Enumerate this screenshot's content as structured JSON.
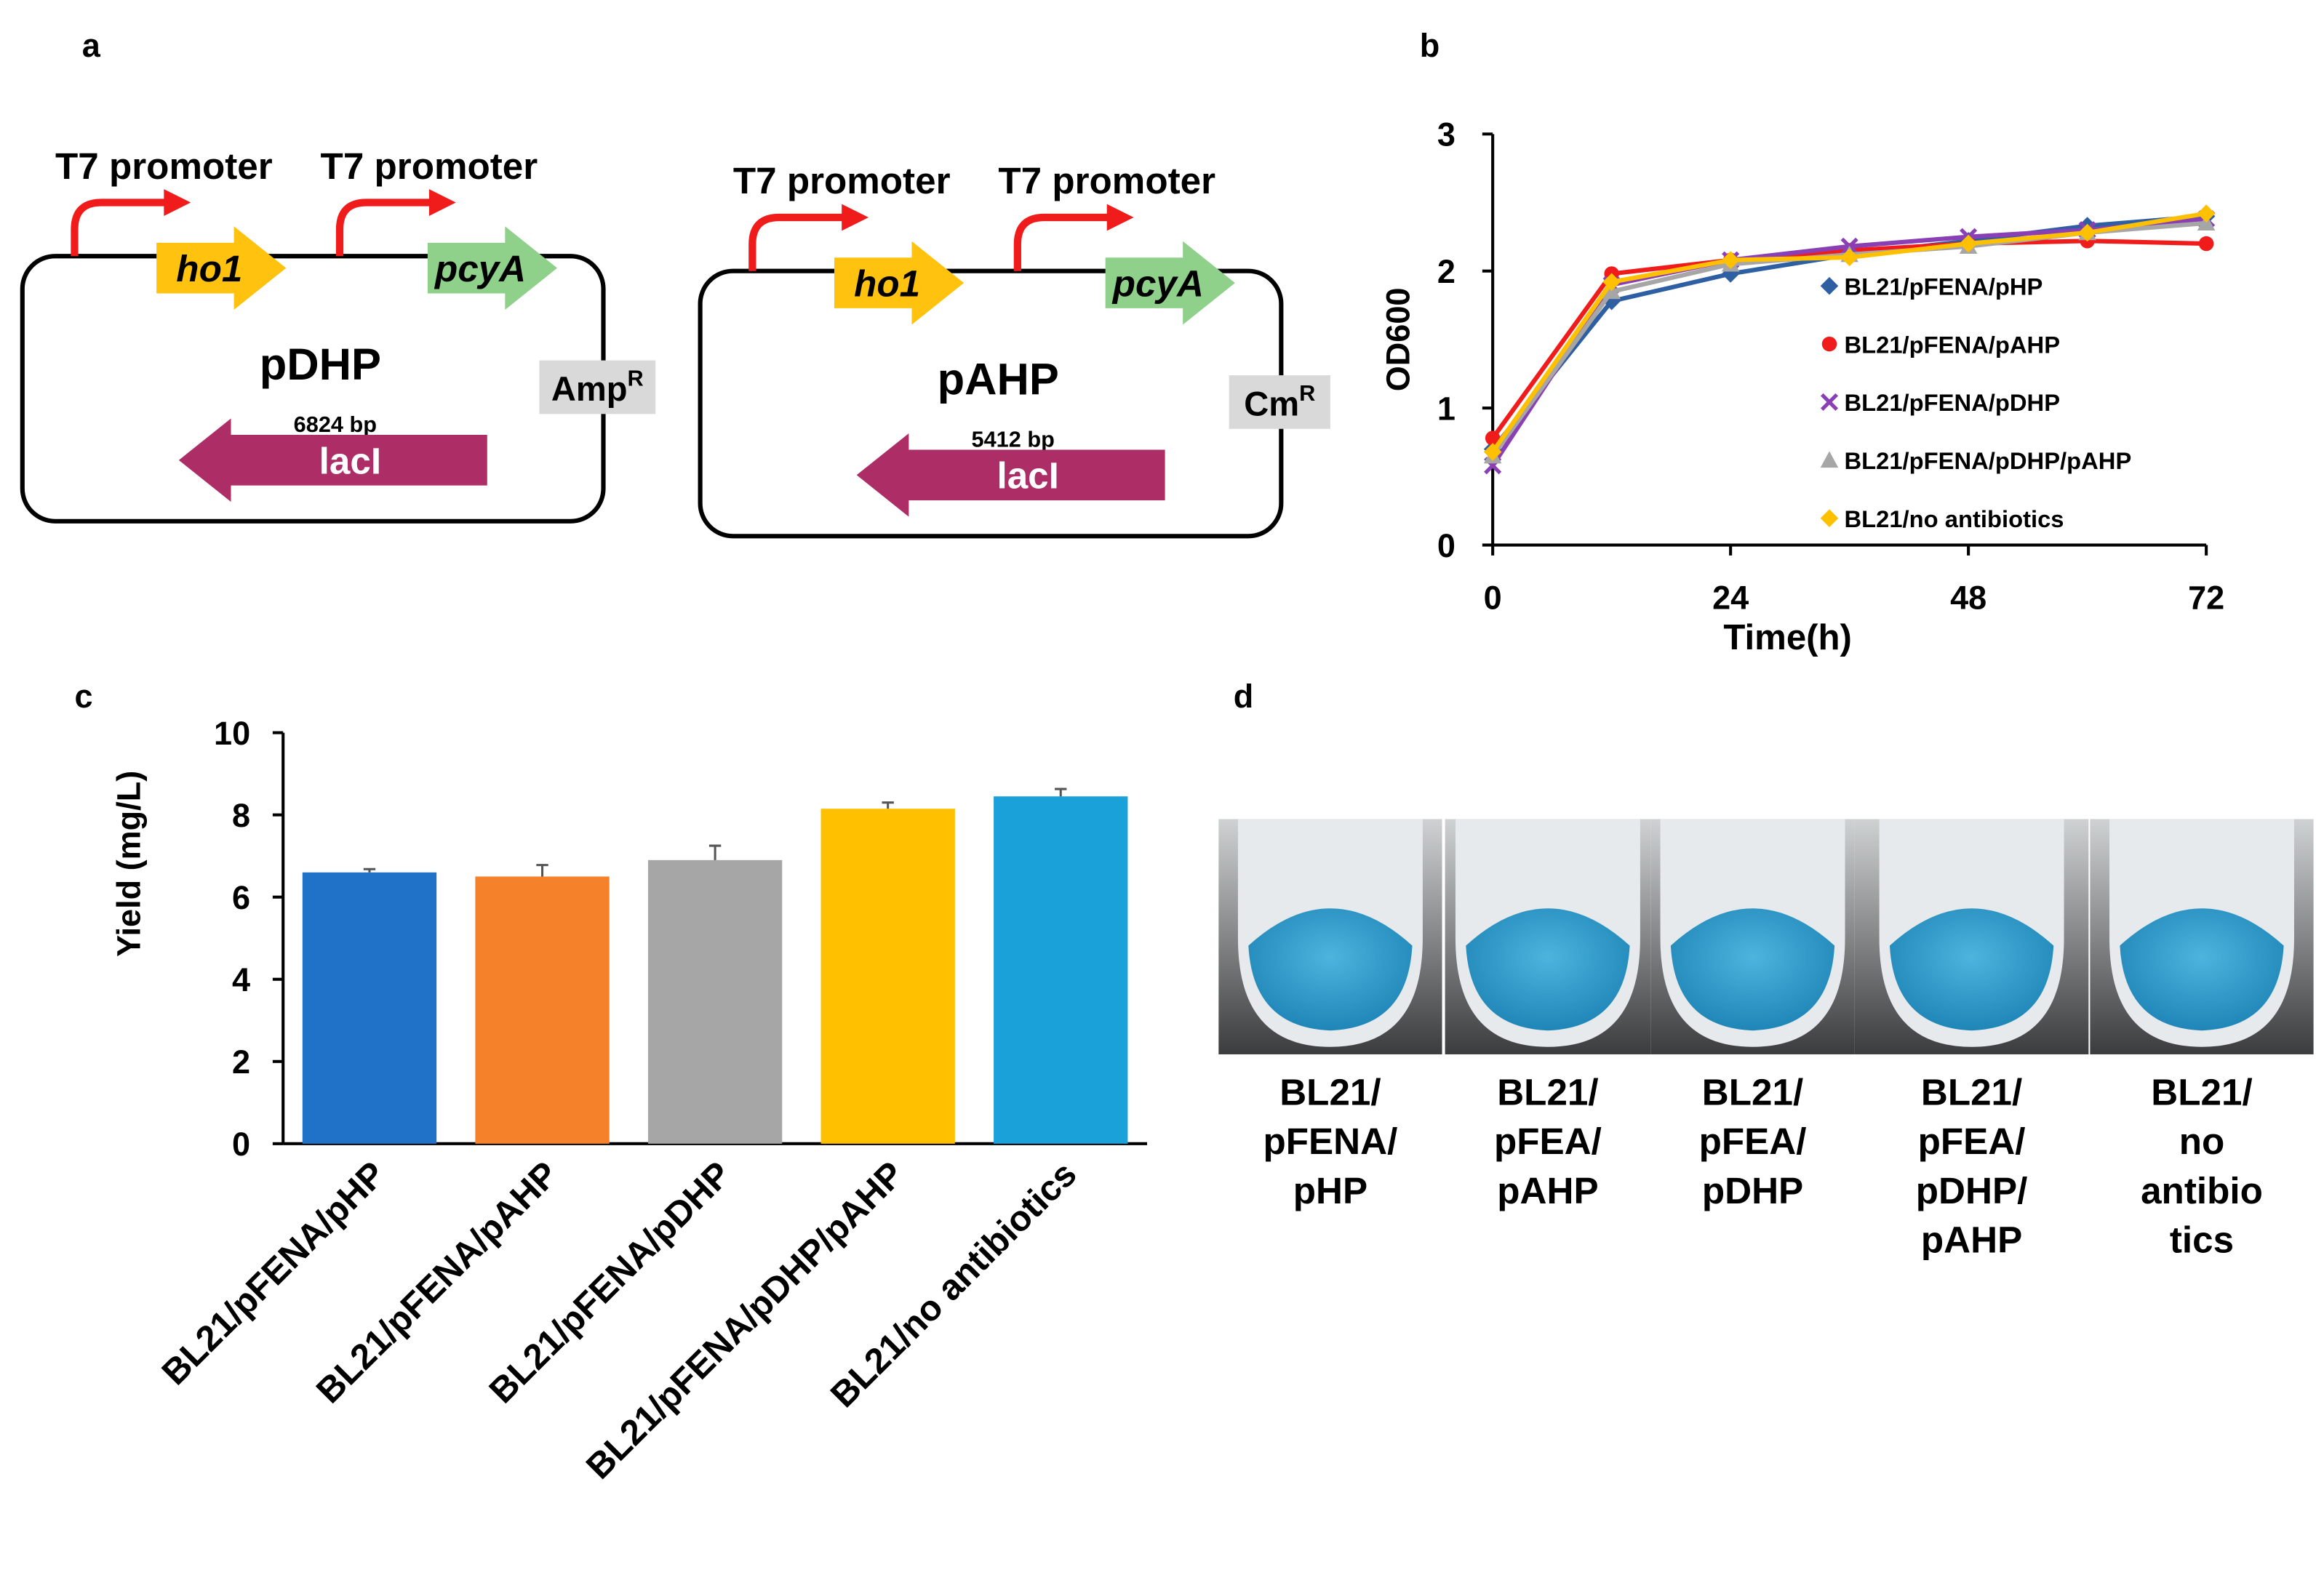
{
  "panels": [
    "a",
    "b",
    "c",
    "d"
  ],
  "plasmids": [
    {
      "name": "pDHP",
      "size": "6824 bp",
      "promoters": [
        "T7 promoter",
        "T7 promoter"
      ],
      "genes": [
        "ho1",
        "pcyA"
      ],
      "resistance": {
        "text": "Amp",
        "sup": "R"
      },
      "repressor": "lacI"
    },
    {
      "name": "pAHP",
      "size": "5412 bp",
      "promoters": [
        "T7 promoter",
        "T7 promoter"
      ],
      "genes": [
        "ho1",
        "pcyA"
      ],
      "resistance": {
        "text": "Cm",
        "sup": "R"
      },
      "repressor": "lacI"
    }
  ],
  "chart_data": [
    {
      "type": "line",
      "x": [
        0,
        12,
        24,
        36,
        48,
        60,
        72
      ],
      "xlim": [
        0,
        72
      ],
      "xticks": [
        0,
        24,
        48,
        72
      ],
      "ylim": [
        0,
        3
      ],
      "yticks": [
        0,
        1,
        2,
        3
      ],
      "x_label": "Time(h)",
      "y_label": "OD600",
      "legend": "center-right",
      "series": [
        {
          "name": "BL21/pFENA/pHP",
          "color": "#2e5fa3",
          "marker": "diamond",
          "values": [
            0.7,
            1.78,
            1.98,
            2.12,
            2.22,
            2.33,
            2.4
          ]
        },
        {
          "name": "BL21/pFENA/pAHP",
          "color": "#f01c1c",
          "marker": "circle",
          "values": [
            0.78,
            1.98,
            2.08,
            2.15,
            2.2,
            2.22,
            2.2
          ]
        },
        {
          "name": "BL21/pFENA/pDHP",
          "color": "#8a3fb5",
          "marker": "cross",
          "values": [
            0.58,
            1.9,
            2.08,
            2.18,
            2.25,
            2.3,
            2.38
          ]
        },
        {
          "name": "BL21/pFENA/pDHP/pAHP",
          "color": "#a6a6a6",
          "marker": "triangle",
          "values": [
            0.65,
            1.85,
            2.05,
            2.12,
            2.18,
            2.28,
            2.35
          ]
        },
        {
          "name": "BL21/no antibiotics",
          "color": "#ffc000",
          "marker": "diamond",
          "values": [
            0.68,
            1.92,
            2.08,
            2.1,
            2.2,
            2.28,
            2.42
          ]
        }
      ]
    },
    {
      "type": "bar",
      "categories": [
        "BL21/pFENA/pHP",
        "BL21/pFENA/pAHP",
        "BL21/pFENA/pDHP",
        "BL21/pFENA/pDHP/pAHP",
        "BL21/no antibiotics"
      ],
      "values": [
        6.6,
        6.5,
        6.9,
        8.15,
        8.45
      ],
      "errors": [
        0.08,
        0.28,
        0.35,
        0.15,
        0.18
      ],
      "colors": [
        "#1f72c8",
        "#f5822a",
        "#a6a6a6",
        "#ffc000",
        "#1ba1d9"
      ],
      "ylim": [
        0,
        10
      ],
      "yticks": [
        0,
        2,
        4,
        6,
        8,
        10
      ],
      "y_label": "Yield (mg/L)"
    }
  ],
  "photos": [
    [
      "BL21/",
      "pFENA/",
      "pHP"
    ],
    [
      "BL21/",
      "pFEA/",
      "pAHP"
    ],
    [
      "BL21/",
      "pFEA/",
      "pDHP"
    ],
    [
      "BL21/",
      "pFEA/",
      "pDHP/",
      "pAHP"
    ],
    [
      "BL21/",
      "no",
      "antibio",
      "tics"
    ]
  ]
}
